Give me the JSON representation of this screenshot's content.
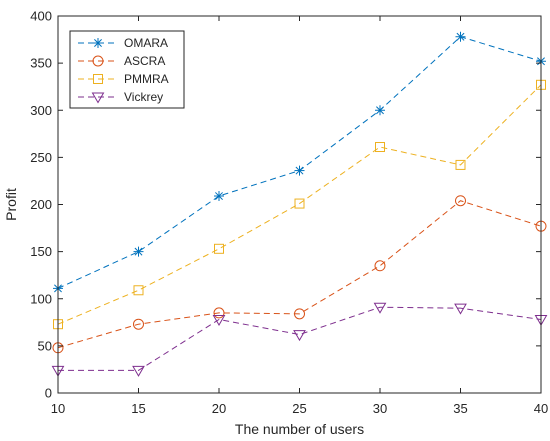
{
  "chart_data": {
    "type": "line",
    "title": "",
    "xlabel": "The number of users",
    "ylabel": "Profit",
    "x": [
      10,
      15,
      20,
      25,
      30,
      35,
      40
    ],
    "xlim": [
      10,
      40
    ],
    "ylim": [
      0,
      400
    ],
    "xticks": [
      "10",
      "15",
      "20",
      "25",
      "30",
      "35",
      "40"
    ],
    "yticks": [
      "0",
      "50",
      "100",
      "150",
      "200",
      "250",
      "300",
      "350",
      "400"
    ],
    "grid": false,
    "legend_position": "top-left",
    "series": [
      {
        "name": "OMARA",
        "color": "#0072BD",
        "marker": "asterisk",
        "values": [
          111,
          150,
          209,
          236,
          300,
          378,
          352
        ]
      },
      {
        "name": "ASCRA",
        "color": "#D95319",
        "marker": "circle",
        "values": [
          48,
          73,
          85,
          84,
          135,
          204,
          177
        ]
      },
      {
        "name": "PMMRA",
        "color": "#EDB120",
        "marker": "square",
        "values": [
          73,
          109,
          153,
          201,
          261,
          242,
          327
        ]
      },
      {
        "name": "Vickrey",
        "color": "#7E2F8E",
        "marker": "triangle-down",
        "values": [
          24,
          24,
          78,
          62,
          91,
          90,
          78
        ]
      }
    ]
  }
}
